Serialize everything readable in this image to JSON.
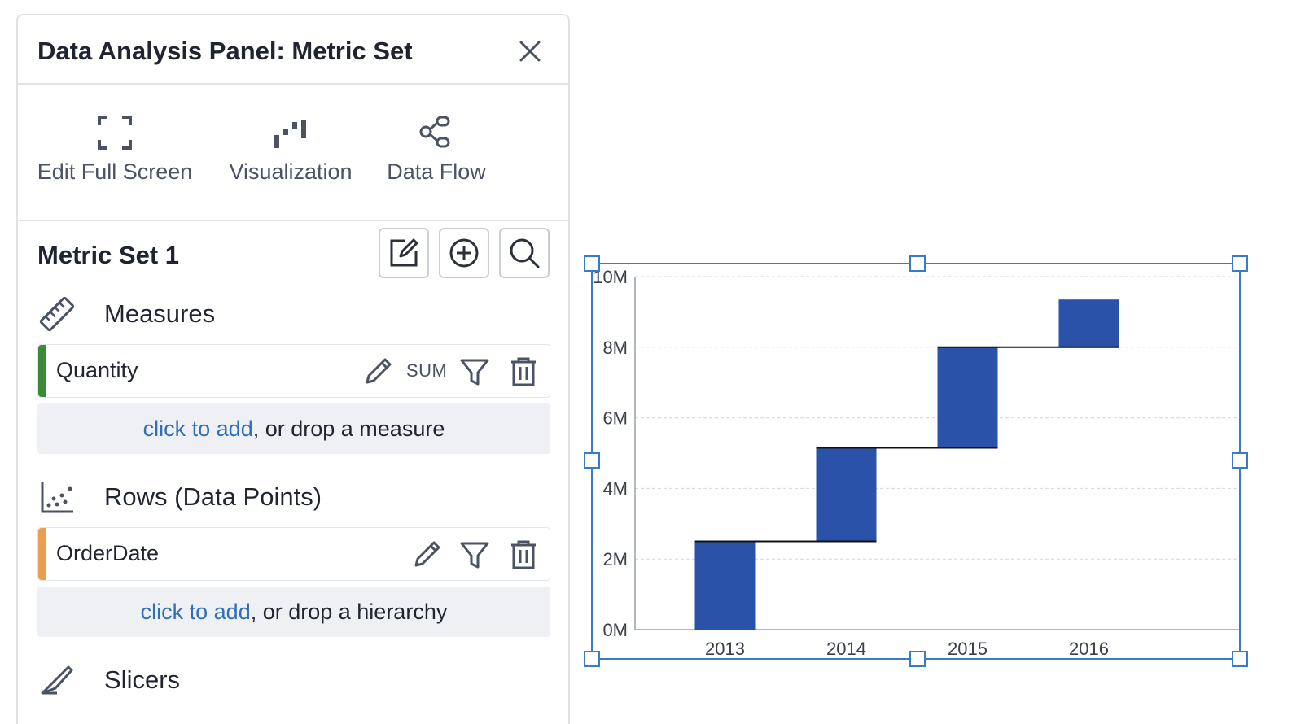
{
  "panel": {
    "title": "Data Analysis Panel: Metric Set",
    "toolbar": {
      "edit_full_screen": "Edit Full Screen",
      "visualization": "Visualization",
      "data_flow": "Data Flow"
    },
    "metric_set_title": "Metric Set 1",
    "measures": {
      "label": "Measures",
      "fields": [
        {
          "name": "Quantity",
          "aggregation": "SUM",
          "color": "#3a8a3a"
        }
      ],
      "dropzone": {
        "link": "click to add",
        "rest": ", or drop a measure"
      }
    },
    "rows": {
      "label": "Rows (Data Points)",
      "fields": [
        {
          "name": "OrderDate",
          "color": "#e8a050"
        }
      ],
      "dropzone": {
        "link": "click to add",
        "rest": ", or drop a hierarchy"
      }
    },
    "slicers": {
      "label": "Slicers"
    }
  },
  "colors": {
    "accent_link": "#2f6eb8",
    "bar_fill": "#2a52a8",
    "selection": "#3a7bc8"
  },
  "chart_data": {
    "type": "bar",
    "subtype": "waterfall",
    "categories": [
      "2013",
      "2014",
      "2015",
      "2016"
    ],
    "series": [
      {
        "start": [
          0,
          2.5,
          5.15,
          8.0
        ],
        "end": [
          2.5,
          5.15,
          8.0,
          9.35
        ]
      }
    ],
    "y_tick_labels": [
      "0M",
      "2M",
      "4M",
      "6M",
      "8M",
      "10M"
    ],
    "y_ticks": [
      0,
      2,
      4,
      6,
      8,
      10
    ],
    "ylim": [
      0,
      10
    ],
    "grid": true,
    "unit": "M"
  }
}
